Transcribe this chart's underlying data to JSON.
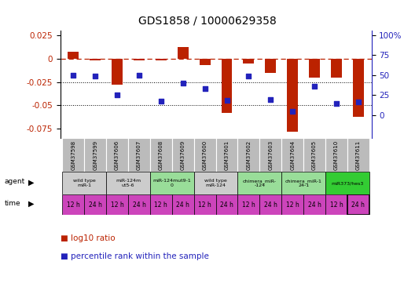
{
  "title": "GDS1858 / 10000629358",
  "samples": [
    "GSM37598",
    "GSM37599",
    "GSM37606",
    "GSM37607",
    "GSM37608",
    "GSM37609",
    "GSM37600",
    "GSM37601",
    "GSM37602",
    "GSM37603",
    "GSM37604",
    "GSM37605",
    "GSM37610",
    "GSM37611"
  ],
  "log10_ratio": [
    0.008,
    -0.002,
    -0.028,
    -0.002,
    -0.002,
    0.013,
    -0.007,
    -0.058,
    -0.005,
    -0.015,
    -0.078,
    -0.02,
    -0.02,
    -0.062
  ],
  "percentile_rank": [
    50,
    49,
    25,
    50,
    18,
    40,
    33,
    19,
    49,
    20,
    5,
    36,
    15,
    17
  ],
  "ylim_left": [
    -0.085,
    0.03
  ],
  "ylim_right": [
    -28.33,
    105
  ],
  "yticks_left": [
    -0.075,
    -0.05,
    -0.025,
    0,
    0.025
  ],
  "yticks_right": [
    0,
    25,
    50,
    75,
    100
  ],
  "dotted_lines": [
    -0.025,
    -0.05
  ],
  "bar_color": "#bb2200",
  "dot_color": "#2222bb",
  "agent_groups": [
    {
      "label": "wild type\nmiR-1",
      "cols": [
        0,
        1
      ],
      "color": "#cccccc"
    },
    {
      "label": "miR-124m\nut5-6",
      "cols": [
        2,
        3
      ],
      "color": "#cccccc"
    },
    {
      "label": "miR-124mut9-1\n0",
      "cols": [
        4,
        5
      ],
      "color": "#99dd99"
    },
    {
      "label": "wild type\nmiR-124",
      "cols": [
        6,
        7
      ],
      "color": "#cccccc"
    },
    {
      "label": "chimera_miR-\n-124",
      "cols": [
        8,
        9
      ],
      "color": "#99dd99"
    },
    {
      "label": "chimera_miR-1\n24-1",
      "cols": [
        10,
        11
      ],
      "color": "#99dd99"
    },
    {
      "label": "miR373/hes3",
      "cols": [
        12,
        13
      ],
      "color": "#33cc33"
    }
  ],
  "time_labels": [
    "12 h",
    "24 h",
    "12 h",
    "24 h",
    "12 h",
    "24 h",
    "12 h",
    "24 h",
    "12 h",
    "24 h",
    "12 h",
    "24 h",
    "12 h",
    "24 h"
  ],
  "time_color": "#cc44bb",
  "sample_bg": "#bbbbbb"
}
